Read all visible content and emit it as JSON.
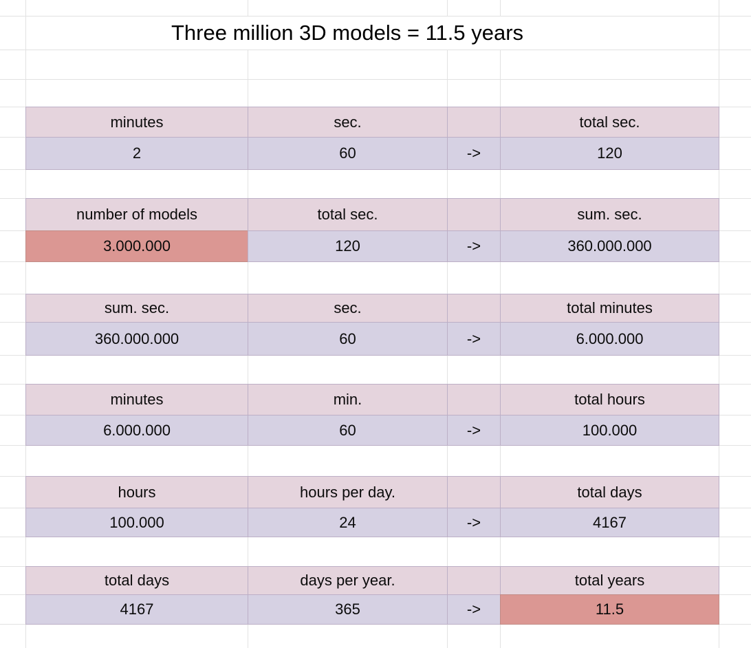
{
  "title": "Three million 3D models = 11.5 years",
  "arrow_label": "->",
  "colors": {
    "header_bg": "#e5d4dd",
    "data_bg": "#d6d1e3",
    "highlight_bg": "#db9793",
    "cell_border": "#bcafc6",
    "highlight_border": "#c18b86",
    "gridline": "#e2e2e2",
    "text": "#0b0b0b"
  },
  "blocks": [
    {
      "header": [
        "minutes",
        "sec.",
        "total sec."
      ],
      "values": [
        "2",
        "60",
        "120"
      ]
    },
    {
      "header": [
        "number of models",
        "total sec.",
        "sum. sec."
      ],
      "values": [
        "3.000.000",
        "120",
        "360.000.000"
      ],
      "highlighted_value": "3.000.000"
    },
    {
      "header": [
        "sum. sec.",
        "sec.",
        "total minutes"
      ],
      "values": [
        "360.000.000",
        "60",
        "6.000.000"
      ]
    },
    {
      "header": [
        "minutes",
        "min.",
        "total hours"
      ],
      "values": [
        "6.000.000",
        "60",
        "100.000"
      ]
    },
    {
      "header": [
        "hours",
        "hours per day.",
        "total days"
      ],
      "values": [
        "100.000",
        "24",
        "4167"
      ]
    },
    {
      "header": [
        "total days",
        "days per year.",
        "total years"
      ],
      "values": [
        "4167",
        "365",
        "11.5"
      ],
      "highlighted_value": "11.5"
    }
  ]
}
